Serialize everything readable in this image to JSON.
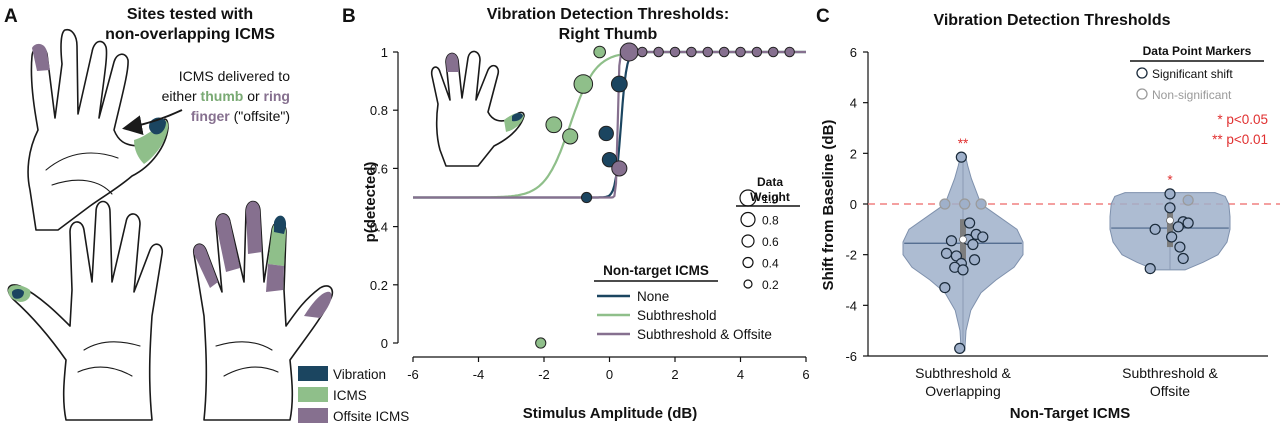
{
  "colors": {
    "vibration": "#1b4560",
    "icms": "#8fbf8a",
    "offsite": "#86708f",
    "violin": "#9fb0ca",
    "violin_edge": "#7f91ad",
    "significant_edge": "#1a2a3a",
    "nonsig_edge": "#9a9a9a",
    "sig_red": "#e03030"
  },
  "panel_a": {
    "letter": "A",
    "title_line1": "Sites tested with",
    "title_line2": "non-overlapping ICMS",
    "note_line1": "ICMS delivered to",
    "note_line2_pre": "either ",
    "note_thumb": "thumb",
    "note_or": " or ",
    "note_ring": "ring",
    "note_finger": "finger",
    "note_offsite": " (\"offsite\")",
    "legend": [
      {
        "label": "Vibration",
        "color": "vibration"
      },
      {
        "label": "ICMS",
        "color": "icms"
      },
      {
        "label": "Offsite ICMS",
        "color": "offsite"
      }
    ]
  },
  "panel_b": {
    "letter": "B",
    "title_line1": "Vibration Detection Thresholds:",
    "title_line2": "Right Thumb",
    "legend_title": "Non-target ICMS",
    "legend_items": [
      "None",
      "Subthreshold",
      "Subthreshold & Offsite"
    ],
    "weight_title_1": "Data",
    "weight_title_2": "Weight",
    "weight_labels": [
      "1.0",
      "0.8",
      "0.6",
      "0.4",
      "0.2"
    ]
  },
  "panel_c": {
    "letter": "C",
    "title": "Vibration Detection Thresholds",
    "marker_title": "Data Point Markers",
    "marker_sig": "Significant shift",
    "marker_nonsig": "Non-significant",
    "p05": "* p<0.05",
    "p01": "** p<0.01",
    "star_group1": "**",
    "star_group2": "*"
  },
  "chart_data": [
    {
      "type": "scatter",
      "title": "Vibration Detection Thresholds: Right Thumb",
      "xlabel": "Stimulus Amplitude (dB)",
      "ylabel": "p(detected)",
      "xlim": [
        -6,
        6
      ],
      "ylim": [
        0,
        1
      ],
      "xticks": [
        -6,
        -4,
        -2,
        0,
        2,
        4,
        6
      ],
      "yticks": [
        0,
        0.2,
        0.4,
        0.6,
        0.8,
        1
      ],
      "legend": "lower-right",
      "series": [
        {
          "name": "None",
          "color": "vibration",
          "threshold": 0.35,
          "slope": 12,
          "points": [
            {
              "x": -0.7,
              "y": 0.5,
              "w": 0.3
            },
            {
              "x": -0.1,
              "y": 0.72,
              "w": 0.6
            },
            {
              "x": 0.0,
              "y": 0.63,
              "w": 0.6
            },
            {
              "x": 0.3,
              "y": 0.89,
              "w": 0.7
            },
            {
              "x": 0.6,
              "y": 1.0,
              "w": 0.8
            }
          ]
        },
        {
          "name": "Subthreshold",
          "color": "icms",
          "threshold": -1.2,
          "slope": 2.6,
          "points": [
            {
              "x": -2.1,
              "y": 0.0,
              "w": 0.3
            },
            {
              "x": -1.7,
              "y": 0.75,
              "w": 0.7
            },
            {
              "x": -1.2,
              "y": 0.71,
              "w": 0.65
            },
            {
              "x": -0.8,
              "y": 0.89,
              "w": 0.9
            },
            {
              "x": -0.3,
              "y": 1.0,
              "w": 0.4
            }
          ]
        },
        {
          "name": "Subthreshold & Offsite",
          "color": "offsite",
          "threshold": 0.25,
          "slope": 45,
          "points": [
            {
              "x": 0.3,
              "y": 0.6,
              "w": 0.65
            },
            {
              "x": 0.6,
              "y": 1.0,
              "w": 0.85
            },
            {
              "x": 1.0,
              "y": 1.0,
              "w": 0.25
            },
            {
              "x": 1.5,
              "y": 1.0,
              "w": 0.25
            },
            {
              "x": 2.0,
              "y": 1.0,
              "w": 0.25
            },
            {
              "x": 2.5,
              "y": 1.0,
              "w": 0.25
            },
            {
              "x": 3.0,
              "y": 1.0,
              "w": 0.25
            },
            {
              "x": 3.5,
              "y": 1.0,
              "w": 0.25
            },
            {
              "x": 4.0,
              "y": 1.0,
              "w": 0.25
            },
            {
              "x": 4.5,
              "y": 1.0,
              "w": 0.25
            },
            {
              "x": 5.0,
              "y": 1.0,
              "w": 0.25
            },
            {
              "x": 5.5,
              "y": 1.0,
              "w": 0.25
            }
          ]
        }
      ]
    },
    {
      "type": "violin",
      "title": "Vibration Detection Thresholds",
      "xlabel": "Non-Target ICMS",
      "ylabel": "Shift from Baseline (dB)",
      "ylim": [
        -6,
        6
      ],
      "yticks": [
        -6,
        -4,
        -2,
        0,
        2,
        4,
        6
      ],
      "reference_line": 0,
      "categories": [
        "Subthreshold & Overlapping",
        "Subthreshold & Offsite"
      ],
      "category_lines": [
        [
          "Subthreshold &",
          "Overlapping"
        ],
        [
          "Subthreshold &",
          "Offsite"
        ]
      ],
      "groups": [
        {
          "name": "Subthreshold & Overlapping",
          "mean": -1.55,
          "median": -1.4,
          "q1": -2.2,
          "q3": -0.6,
          "significance": "**",
          "profile": [
            [
              -5.8,
              0.03
            ],
            [
              -5.0,
              0.05
            ],
            [
              -4.2,
              0.13
            ],
            [
              -3.5,
              0.3
            ],
            [
              -3.0,
              0.55
            ],
            [
              -2.5,
              0.85
            ],
            [
              -2.0,
              1.0
            ],
            [
              -1.5,
              1.0
            ],
            [
              -1.0,
              0.9
            ],
            [
              -0.5,
              0.6
            ],
            [
              0.0,
              0.3
            ],
            [
              0.5,
              0.22
            ],
            [
              1.0,
              0.14
            ],
            [
              1.5,
              0.08
            ],
            [
              1.9,
              0.04
            ]
          ],
          "points": [
            {
              "dx": -0.05,
              "y": 1.85,
              "sig": true
            },
            {
              "dx": -0.55,
              "y": 0.0,
              "sig": false
            },
            {
              "dx": 0.05,
              "y": 0.0,
              "sig": false
            },
            {
              "dx": 0.55,
              "y": 0.0,
              "sig": false
            },
            {
              "dx": 0.2,
              "y": -0.75,
              "sig": true
            },
            {
              "dx": 0.4,
              "y": -1.2,
              "sig": true
            },
            {
              "dx": 0.6,
              "y": -1.3,
              "sig": true
            },
            {
              "dx": 0.15,
              "y": -1.4,
              "sig": true
            },
            {
              "dx": -0.35,
              "y": -1.45,
              "sig": true
            },
            {
              "dx": 0.3,
              "y": -1.6,
              "sig": true
            },
            {
              "dx": -0.5,
              "y": -1.95,
              "sig": true
            },
            {
              "dx": -0.2,
              "y": -2.05,
              "sig": true
            },
            {
              "dx": 0.35,
              "y": -2.2,
              "sig": true
            },
            {
              "dx": -0.05,
              "y": -2.35,
              "sig": true
            },
            {
              "dx": -0.25,
              "y": -2.5,
              "sig": true
            },
            {
              "dx": 0.0,
              "y": -2.6,
              "sig": true
            },
            {
              "dx": -0.55,
              "y": -3.3,
              "sig": true
            },
            {
              "dx": -0.1,
              "y": -5.7,
              "sig": true
            }
          ]
        },
        {
          "name": "Subthreshold & Offsite",
          "mean": -0.95,
          "median": -0.65,
          "q1": -1.7,
          "q3": -0.1,
          "significance": "*",
          "profile": [
            [
              -2.6,
              0.25
            ],
            [
              -2.3,
              0.55
            ],
            [
              -2.0,
              0.8
            ],
            [
              -1.5,
              0.95
            ],
            [
              -1.0,
              1.0
            ],
            [
              -0.5,
              1.0
            ],
            [
              0.0,
              0.98
            ],
            [
              0.3,
              0.92
            ],
            [
              0.45,
              0.75
            ]
          ],
          "points": [
            {
              "dx": 0.0,
              "y": 0.4,
              "sig": true
            },
            {
              "dx": 0.55,
              "y": 0.15,
              "sig": false
            },
            {
              "dx": 0.0,
              "y": -0.15,
              "sig": true
            },
            {
              "dx": 0.4,
              "y": -0.7,
              "sig": true
            },
            {
              "dx": 0.55,
              "y": -0.75,
              "sig": true
            },
            {
              "dx": 0.25,
              "y": -0.9,
              "sig": true
            },
            {
              "dx": -0.45,
              "y": -1.0,
              "sig": true
            },
            {
              "dx": 0.05,
              "y": -1.3,
              "sig": true
            },
            {
              "dx": 0.3,
              "y": -1.7,
              "sig": true
            },
            {
              "dx": 0.4,
              "y": -2.15,
              "sig": true
            },
            {
              "dx": -0.6,
              "y": -2.55,
              "sig": true
            }
          ]
        }
      ]
    }
  ]
}
